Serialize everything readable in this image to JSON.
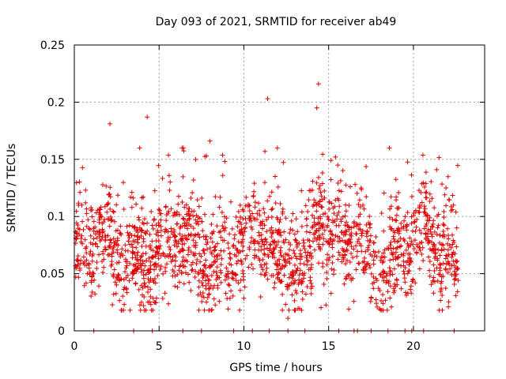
{
  "chart_data": {
    "type": "scatter",
    "title": "Day 093 of 2021, SRMTID for receiver ab49",
    "xlabel": "GPS time / hours",
    "ylabel": "SRMTID / TECUs",
    "xlim": [
      0,
      24.2
    ],
    "ylim": [
      0,
      0.25
    ],
    "x_ticks": [
      0,
      5,
      10,
      15,
      20
    ],
    "x_tick_labels": [
      "0",
      "5",
      "10",
      "15",
      "20"
    ],
    "y_ticks": [
      0,
      0.05,
      0.1,
      0.15,
      0.2,
      0.25
    ],
    "y_tick_labels": [
      "0",
      "0.05",
      "0.1",
      "0.15",
      "0.2",
      "0.25"
    ],
    "grid": true,
    "marker": "plus",
    "series_color": "#e00000",
    "notable_points": [
      {
        "x": 14.4,
        "y": 0.216
      },
      {
        "x": 11.4,
        "y": 0.203
      },
      {
        "x": 4.3,
        "y": 0.187
      },
      {
        "x": 2.1,
        "y": 0.181
      },
      {
        "x": 8.0,
        "y": 0.166
      },
      {
        "x": 14.3,
        "y": 0.195
      },
      {
        "x": 12.6,
        "y": 0.011
      }
    ],
    "zero_markers_x": [
      1.15,
      3.5,
      4.6,
      6.4,
      7.5,
      9.4,
      10.5,
      11.5,
      12.6,
      13.6,
      15.6,
      16.5,
      16.7,
      17.5,
      18.5,
      19.5,
      19.9,
      20.6,
      22.4
    ],
    "point_count": 1900,
    "generator_seed": 93
  }
}
